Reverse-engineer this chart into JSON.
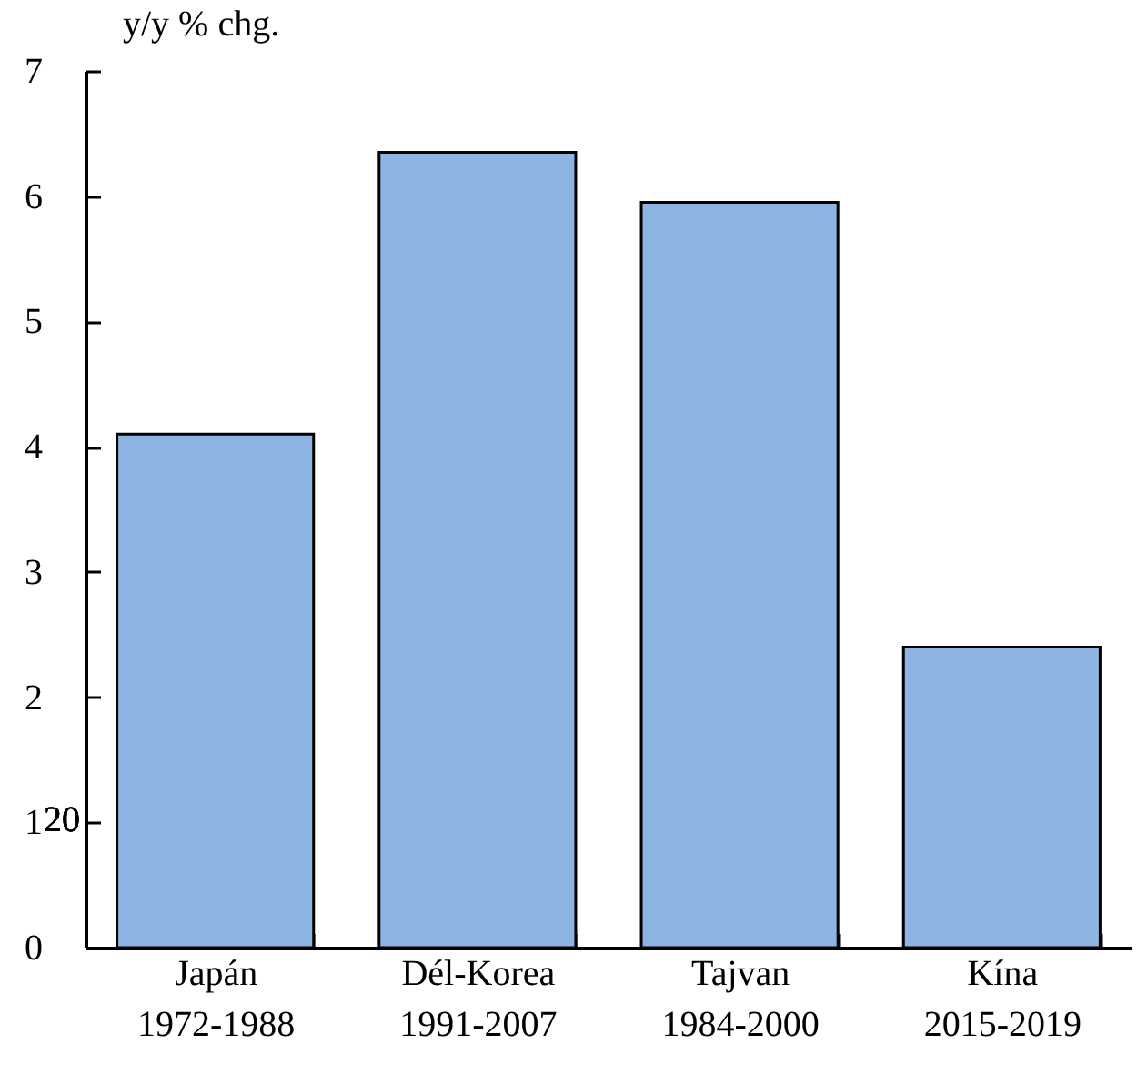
{
  "chart_data": {
    "type": "bar",
    "ylabel": "y/y % chg.",
    "categories": [
      "Japán\n1972-1988",
      "Dél-Korea\n1991-2007",
      "Tajvan\n1984-2000",
      "Kína\n2015-2019"
    ],
    "values": [
      4.1,
      6.35,
      5.95,
      2.4
    ],
    "color": "#8eb4e3",
    "ylim": [
      0,
      7
    ],
    "yticks": [
      0,
      1,
      2,
      3,
      4,
      5,
      6,
      7
    ],
    "grid": false,
    "annotations": [
      "20"
    ]
  }
}
